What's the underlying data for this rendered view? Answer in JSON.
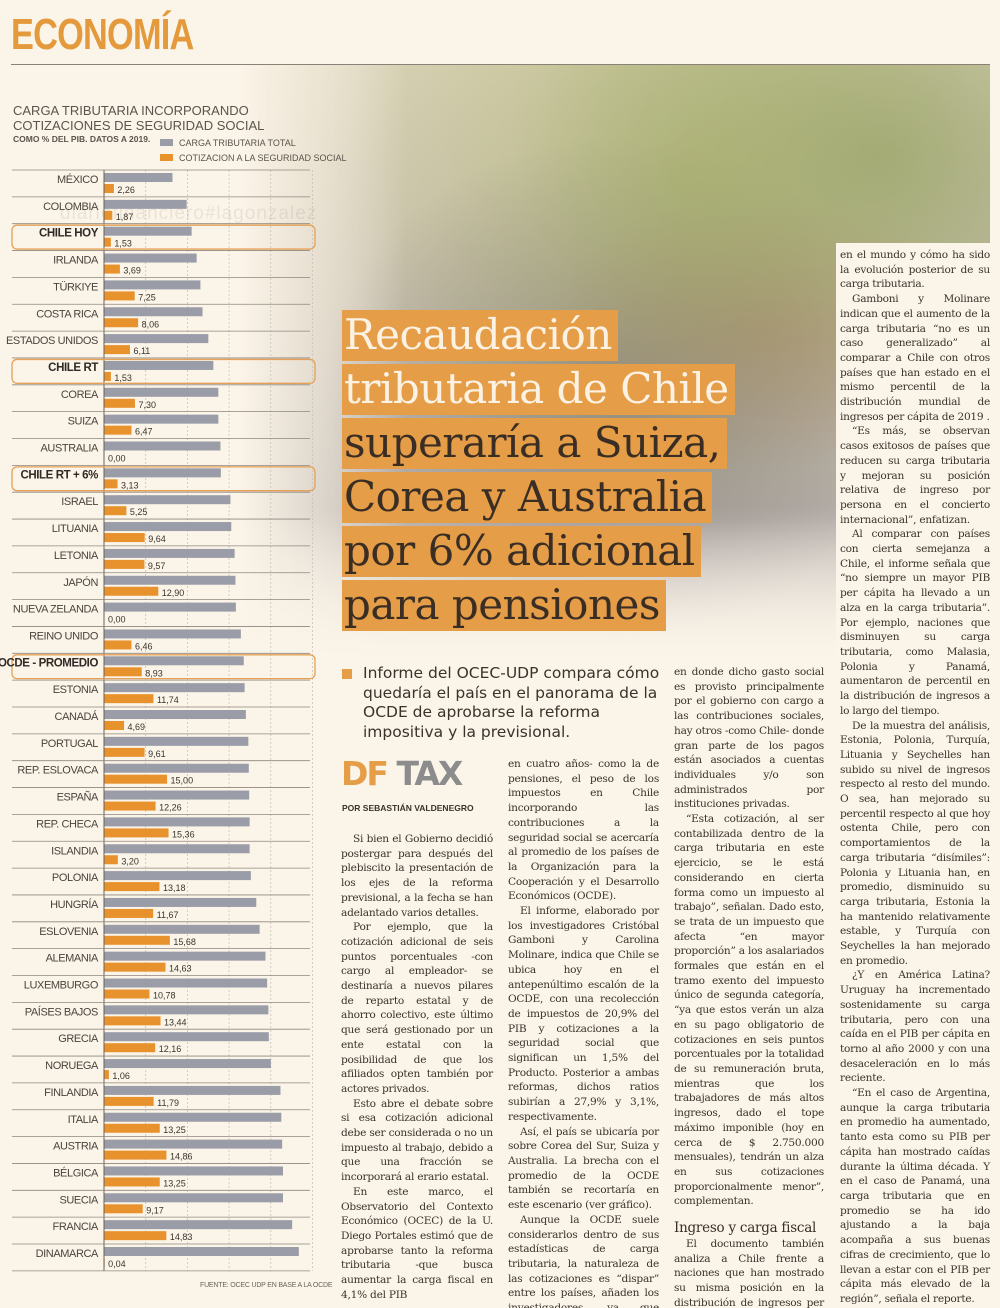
{
  "section": {
    "title": "ECONOMÍA"
  },
  "watermark": "diariofinanciero#lagonzalez",
  "headline": {
    "lines": [
      {
        "text": "Recaudación",
        "tone": "light"
      },
      {
        "text": "tributaria de Chile",
        "tone": "light"
      },
      {
        "text": "superaría a Suiza,",
        "tone": "dark"
      },
      {
        "text": "Corea y Australia",
        "tone": "dark"
      },
      {
        "text": "por 6% adicional",
        "tone": "dark"
      },
      {
        "text": "para pensiones",
        "tone": "dark"
      }
    ]
  },
  "lead": "Informe del OCEC-UDP compara cómo quedaría el país en el panorama de la OCDE de aprobarse la reforma impositiva y la previsional.",
  "brand": {
    "df": "DF",
    "tax": "TAX"
  },
  "byline": "POR SEBASTIÁN VALDENEGRO",
  "colors": {
    "accent": "#e59d47",
    "gray_bar": "#9a9ca8",
    "orange_bar": "#e8922e",
    "background": "#fbf4e8"
  },
  "article": {
    "col1": [
      "Si bien el Gobierno decidió postergar para después del plebiscito la presentación de los ejes de la reforma previsional, a la fecha se han adelantado varios detalles.",
      "Por ejemplo, que la cotización adicional de seis puntos porcentuales -con cargo al empleador- se destinaría a nuevos pilares de reparto estatal y de ahorro colectivo, este último que será gestionado por un ente estatal con la posibilidad de que los afiliados opten también por actores privados.",
      "Esto abre el debate sobre si esa cotización adicional debe ser considerada o no un impuesto al trabajo, debido a que una fracción se incorporará al erario estatal.",
      "En este marco, el Observatorio del Contexto Económico (OCEC) de la U. Diego Portales estimó que de aprobarse tanto la reforma tributaria -que busca aumentar la carga fiscal en 4,1% del PIB"
    ],
    "col2": [
      "en cuatro años- como la de pensiones, el peso de los impuestos en Chile incorporando las contribuciones a la seguridad social se acercaría al promedio de los países de la Organización para la Cooperación y el Desarrollo Económicos (OCDE).",
      "El informe, elaborado por los investigadores Cristóbal Gamboni y Carolina Molinare, indica que Chile se ubica hoy en el antepenúltimo escalón de la OCDE, con una recolección de impuestos de 20,9% del PIB y cotizaciones a la seguridad social que significan un 1,5% del Producto. Posterior a ambas reformas, dichos ratios subirían a 27,9% y 3,1%, respectivamente.",
      "Así, el país se ubicaría por sobre Corea del Sur, Suiza y Australia. La brecha con el promedio de la OCDE también se recortaría en este escenario (ver gráfico).",
      "Aunque la OCDE suele considerarlos dentro de sus estadísticas de carga tributaria, la naturaleza de las cotizaciones es “dispar” entre los países, añaden los investigadores, ya que mientras hay lugares"
    ],
    "col3": [
      "en donde dicho gasto social es provisto principalmente por el gobierno con cargo a las contribuciones sociales, hay otros -como Chile- donde gran parte de los pagos están asociados a cuentas individuales y/o son administrados por instituciones privadas.",
      "“Esta cotización, al ser contabilizada dentro de la carga tributaria en este ejercicio, se le está considerando en cierta forma como un impuesto al trabajo”, señalan. Dado esto, se trata de un impuesto que afecta “en mayor proporción” a los asalariados formales que están en el tramo exento del impuesto único de segunda categoría, “ya que estos verán un alza en su pago obligatorio de cotizaciones en seis puntos porcentuales por la totalidad de su remuneración bruta, mientras que los trabajadores de más altos ingresos, dado el tope máximo imponible (hoy en cerca de $ 2.750.000 mensuales), tendrán un alza en sus cotizaciones proporcionalmente menor”, complementan."
    ],
    "col3_subhead": "Ingreso y carga fiscal",
    "col3_after": [
      "El documento también analiza a Chile frente a naciones que han mostrado su misma posición en la distribución de ingresos per cápita"
    ],
    "col4": [
      "en el mundo y cómo ha sido la evolución posterior de su carga tributaria.",
      "Gamboni y Molinare indican que el aumento de la carga tributaria “no es un caso generalizado” al comparar a Chile con otros países que han estado en el mismo percentil de la distribución mundial de ingresos per cápita de 2019 .",
      "“Es más, se observan casos exitosos de países que reducen su carga tributaria y mejoran su posición relativa de ingreso por persona en el concierto internacional”, enfatizan.",
      "Al comparar con países con cierta semejanza a Chile, el informe señala que “no siempre un mayor PIB per cápita ha llevado a un alza en la carga tributaria”. Por ejemplo, naciones que disminuyen su carga tributaria, como Malasia, Polonia y Panamá, aumentaron de percentil en la distribución de ingresos a lo largo del tiempo.",
      "De la muestra del análisis, Estonia, Polonia, Turquía, Lituania y Seychelles han subido su nivel de ingresos respecto al resto del mundo. O sea, han mejorado su percentil respecto al que hoy ostenta Chile, pero con comportamientos de la carga tributaria “disímiles”: Polonia y Lituania han, en promedio, disminuido su carga tributaria, Estonia la ha mantenido relativamente estable, y Turquía con Seychelles la han mejorado en promedio.",
      "¿Y en América Latina? Uruguay ha incrementado sostenidamente su carga tributaria, pero con una caída en el PIB per cápita en torno al año 2000 y con una desaceleración en lo más reciente.",
      "“En el caso de Argentina, aunque la carga tributaria en promedio ha aumentado, tanto esta como su PIB per cápita han mostrado caídas durante la última década. Y en el caso de Panamá, una carga tributaria que en promedio se ha ido ajustando a la baja acompaña a sus buenas cifras de crecimiento, que lo llevan a estar con el PIB per cápita más elevado de la región”, señala el reporte."
    ]
  },
  "chart_data": {
    "type": "bar",
    "orientation": "horizontal",
    "title": "CARGA TRIBUTARIA INCORPORANDO COTIZACIONES DE SEGURIDAD SOCIAL",
    "subtitle": "COMO % DEL PIB. DATOS A 2019.",
    "source": "FUENTE: OCEC UDP EN BASE A LA OCDE",
    "xlim": [
      0,
      50
    ],
    "grid": true,
    "legend": "top-right",
    "categories": [
      "MÉXICO",
      "COLOMBIA",
      "CHILE HOY",
      "IRLANDA",
      "TÜRKIYE",
      "COSTA RICA",
      "ESTADOS UNIDOS",
      "CHILE RT",
      "COREA",
      "SUIZA",
      "AUSTRALIA",
      "CHILE RT + 6%",
      "ISRAEL",
      "LITUANIA",
      "LETONIA",
      "JAPÓN",
      "NUEVA ZELANDA",
      "REINO UNIDO",
      "OCDE - PROMEDIO",
      "ESTONIA",
      "CANADÁ",
      "PORTUGAL",
      "REP. ESLOVACA",
      "ESPAÑA",
      "REP. CHECA",
      "ISLANDIA",
      "POLONIA",
      "HUNGRÍA",
      "ESLOVENIA",
      "ALEMANIA",
      "LUXEMBURGO",
      "PAÍSES BAJOS",
      "GRECIA",
      "NORUEGA",
      "FINLANDIA",
      "ITALIA",
      "AUSTRIA",
      "BÉLGICA",
      "SUECIA",
      "FRANCIA",
      "DINAMARCA"
    ],
    "highlighted": [
      "CHILE HOY",
      "CHILE RT",
      "CHILE RT + 6%",
      "OCDE - PROMEDIO"
    ],
    "series": [
      {
        "name": "CARGA TRIBUTARIA TOTAL",
        "color": "#9a9ca8",
        "values": [
          16.3,
          19.7,
          20.9,
          22.1,
          23.0,
          23.5,
          24.9,
          26.1,
          27.3,
          27.3,
          27.8,
          27.9,
          30.2,
          30.4,
          31.2,
          31.4,
          31.5,
          32.7,
          33.4,
          33.6,
          33.9,
          34.5,
          34.6,
          34.7,
          34.8,
          34.8,
          35.1,
          36.4,
          37.2,
          38.6,
          39.0,
          39.3,
          39.4,
          39.9,
          42.2,
          42.4,
          42.6,
          42.8,
          42.8,
          45.0,
          46.6
        ]
      },
      {
        "name": "COTIZACION A LA SEGURIDAD SOCIAL",
        "color": "#e8922e",
        "values": [
          2.26,
          1.87,
          1.53,
          3.69,
          7.25,
          8.06,
          6.11,
          1.53,
          7.3,
          6.47,
          0.0,
          3.13,
          5.25,
          9.64,
          9.57,
          12.9,
          0.0,
          6.46,
          8.93,
          11.74,
          4.69,
          9.61,
          15.0,
          12.26,
          15.36,
          3.2,
          13.18,
          11.67,
          15.68,
          14.63,
          10.78,
          13.44,
          12.16,
          1.06,
          11.79,
          13.25,
          14.86,
          13.25,
          9.17,
          14.83,
          0.04
        ],
        "labels": [
          "2,26",
          "1,87",
          "1,53",
          "3,69",
          "7,25",
          "8,06",
          "6,11",
          "1,53",
          "7,30",
          "6,47",
          "0,00",
          "3,13",
          "5,25",
          "9,64",
          "9,57",
          "12,90",
          "0,00",
          "6,46",
          "8,93",
          "11,74",
          "4,69",
          "9,61",
          "15,00",
          "12,26",
          "15,36",
          "3,20",
          "13,18",
          "11,67",
          "15,68",
          "14,63",
          "10,78",
          "13,44",
          "12,16",
          "1,06",
          "11,79",
          "13,25",
          "14,86",
          "13,25",
          "9,17",
          "14,83",
          "0,04"
        ]
      }
    ]
  }
}
